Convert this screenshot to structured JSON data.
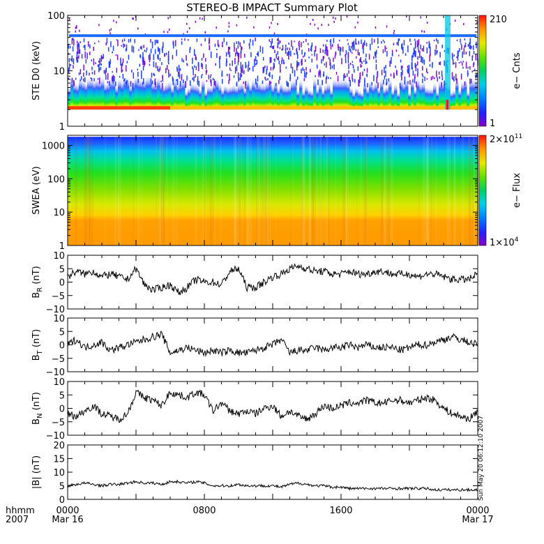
{
  "title": "STEREO-B IMPACT Summary Plot",
  "side_stamp": "Sun May 20 06:12:10 2007",
  "time_axis": {
    "corner_labels": [
      "hhmm",
      "2007"
    ],
    "ticks": [
      {
        "hour": 0,
        "time": "0000",
        "date": "Mar 16"
      },
      {
        "hour": 8,
        "time": "0800",
        "date": ""
      },
      {
        "hour": 16,
        "time": "1600",
        "date": ""
      },
      {
        "hour": 24,
        "time": "0000",
        "date": "Mar 17"
      }
    ],
    "range_hours": [
      0,
      24
    ]
  },
  "chart_data": [
    {
      "type": "heatmap",
      "id": "ste",
      "ylabel": "STE D0 (keV)",
      "yscale": "log",
      "ylim": [
        1,
        100
      ],
      "yticks": [
        {
          "v": 1,
          "label": "1"
        },
        {
          "v": 10,
          "label": "10"
        },
        {
          "v": 100,
          "label": "100"
        }
      ],
      "data_yrange": [
        2,
        43
      ],
      "colorbar": {
        "label": "e− Cnts",
        "min": 1,
        "max": 210,
        "min_label": "1",
        "max_label": "210"
      },
      "features": {
        "strong_line_keV": 43,
        "low_energy_enhancement_end_hour": 6,
        "event_hour": 22.2
      }
    },
    {
      "type": "heatmap",
      "id": "swea",
      "ylabel": "SWEA (eV)",
      "yscale": "log",
      "ylim": [
        1,
        2000
      ],
      "yticks": [
        {
          "v": 1,
          "label": "1"
        },
        {
          "v": 10,
          "label": "10"
        },
        {
          "v": 100,
          "label": "100"
        },
        {
          "v": 1000,
          "label": "1000"
        }
      ],
      "data_yrange": [
        1,
        1800
      ],
      "colorbar": {
        "label": "e− Flux",
        "min": 10000,
        "max": 200000000000,
        "min_label": "1×10",
        "min_exp": "4",
        "max_label": "2×10",
        "max_exp": "11"
      }
    },
    {
      "type": "line",
      "id": "br",
      "ylabel": "B",
      "ylabel_sub": "R",
      "ylabel_unit": " (nT)",
      "ylim": [
        -10,
        10
      ],
      "yticks": [
        {
          "v": -10,
          "label": "−10"
        },
        {
          "v": -5,
          "label": "−5"
        },
        {
          "v": 0,
          "label": "0"
        },
        {
          "v": 5,
          "label": "5"
        },
        {
          "v": 10,
          "label": "10"
        }
      ],
      "x": [
        0,
        0.5,
        1,
        1.5,
        2,
        2.5,
        3,
        3.5,
        4,
        4.5,
        5,
        5.5,
        6,
        6.5,
        7,
        7.5,
        8,
        8.5,
        9,
        9.5,
        10,
        10.5,
        11,
        11.5,
        12,
        12.5,
        13,
        13.5,
        14,
        14.5,
        15,
        15.5,
        16,
        16.5,
        17,
        17.5,
        18,
        18.5,
        19,
        19.5,
        20,
        20.5,
        21,
        21.5,
        22,
        22.5,
        23,
        23.5,
        24
      ],
      "values": [
        2,
        4,
        3,
        4,
        2,
        3,
        2,
        1,
        5,
        -1,
        -3,
        -2,
        -1,
        -4,
        -2,
        1,
        0,
        0,
        -1,
        4,
        5,
        -2,
        -2,
        0,
        2,
        3,
        5,
        6,
        5,
        4,
        4,
        3,
        3,
        4,
        3,
        3,
        4,
        4,
        3,
        3,
        3,
        2,
        3,
        3,
        2,
        1,
        1,
        1,
        3
      ]
    },
    {
      "type": "line",
      "id": "bt",
      "ylabel": "B",
      "ylabel_sub": "T",
      "ylabel_unit": " (nT)",
      "ylim": [
        -10,
        10
      ],
      "yticks": [
        {
          "v": -10,
          "label": "−10"
        },
        {
          "v": -5,
          "label": "−5"
        },
        {
          "v": 0,
          "label": "0"
        },
        {
          "v": 5,
          "label": "5"
        },
        {
          "v": 10,
          "label": "10"
        }
      ],
      "x": [
        0,
        0.5,
        1,
        1.5,
        2,
        2.5,
        3,
        3.5,
        4,
        4.5,
        5,
        5.5,
        6,
        6.5,
        7,
        7.5,
        8,
        8.5,
        9,
        9.5,
        10,
        10.5,
        11,
        11.5,
        12,
        12.5,
        13,
        13.5,
        14,
        14.5,
        15,
        15.5,
        16,
        16.5,
        17,
        17.5,
        18,
        18.5,
        19,
        19.5,
        20,
        20.5,
        21,
        21.5,
        22,
        22.5,
        23,
        23.5,
        24
      ],
      "values": [
        0,
        2,
        -1,
        0,
        1,
        -2,
        -1,
        0,
        1,
        2,
        3,
        4,
        -3,
        -2,
        -1,
        -2,
        -3,
        -2,
        -3,
        -2,
        -3,
        -3,
        -2,
        -1,
        0,
        2,
        -3,
        -2,
        -2,
        -1,
        -2,
        -1,
        -1,
        0,
        -1,
        0,
        -1,
        -1,
        -1,
        -2,
        -1,
        0,
        0,
        1,
        2,
        3,
        2,
        1,
        0
      ]
    },
    {
      "type": "line",
      "id": "bn",
      "ylabel": "B",
      "ylabel_sub": "N",
      "ylabel_unit": " (nT)",
      "ylim": [
        -10,
        10
      ],
      "yticks": [
        {
          "v": -10,
          "label": "−10"
        },
        {
          "v": -5,
          "label": "−5"
        },
        {
          "v": 0,
          "label": "0"
        },
        {
          "v": 5,
          "label": "5"
        },
        {
          "v": 10,
          "label": "10"
        }
      ],
      "x": [
        0,
        0.5,
        1,
        1.5,
        2,
        2.5,
        3,
        3.5,
        4,
        4.5,
        5,
        5.5,
        6,
        6.5,
        7,
        7.5,
        8,
        8.5,
        9,
        9.5,
        10,
        10.5,
        11,
        11.5,
        12,
        12.5,
        13,
        13.5,
        14,
        14.5,
        15,
        15.5,
        16,
        16.5,
        17,
        17.5,
        18,
        18.5,
        19,
        19.5,
        20,
        20.5,
        21,
        21.5,
        22,
        22.5,
        23,
        23.5,
        24
      ],
      "values": [
        -2,
        -3,
        -1,
        1,
        -2,
        -3,
        -4,
        -2,
        6,
        4,
        3,
        1,
        6,
        5,
        4,
        6,
        5,
        -1,
        2,
        -1,
        -2,
        -1,
        -2,
        0,
        1,
        -3,
        -1,
        -3,
        -4,
        -2,
        1,
        0,
        1,
        2,
        2,
        3,
        2,
        2,
        3,
        3,
        2,
        3,
        4,
        3,
        0,
        -2,
        -3,
        -4,
        -1
      ]
    },
    {
      "type": "line",
      "id": "bmag",
      "ylabel": "|B| (nT)",
      "ylim": [
        0,
        20
      ],
      "yticks": [
        {
          "v": 0,
          "label": "0"
        },
        {
          "v": 5,
          "label": "5"
        },
        {
          "v": 10,
          "label": "10"
        },
        {
          "v": 15,
          "label": "15"
        },
        {
          "v": 20,
          "label": "20"
        }
      ],
      "x": [
        0,
        0.5,
        1,
        1.5,
        2,
        2.5,
        3,
        3.5,
        4,
        4.5,
        5,
        5.5,
        6,
        6.5,
        7,
        7.5,
        8,
        8.5,
        9,
        9.5,
        10,
        10.5,
        11,
        11.5,
        12,
        12.5,
        13,
        13.5,
        14,
        14.5,
        15,
        15.5,
        16,
        16.5,
        17,
        17.5,
        18,
        18.5,
        19,
        19.5,
        20,
        20.5,
        21,
        21.5,
        22,
        22.5,
        23,
        23.5,
        24
      ],
      "values": [
        5,
        5.5,
        6,
        5.5,
        5,
        5.5,
        5.5,
        6,
        6.5,
        6,
        6,
        5.5,
        6.5,
        6.5,
        6,
        6.5,
        6,
        5,
        5,
        5,
        5.5,
        5,
        5,
        5,
        5,
        4.5,
        5.5,
        6,
        5.5,
        5,
        5,
        4.5,
        4.5,
        4,
        4,
        4,
        4,
        4,
        4,
        4,
        4,
        4,
        4,
        3.5,
        3.5,
        3.5,
        3.5,
        3.5,
        3.5
      ]
    }
  ]
}
